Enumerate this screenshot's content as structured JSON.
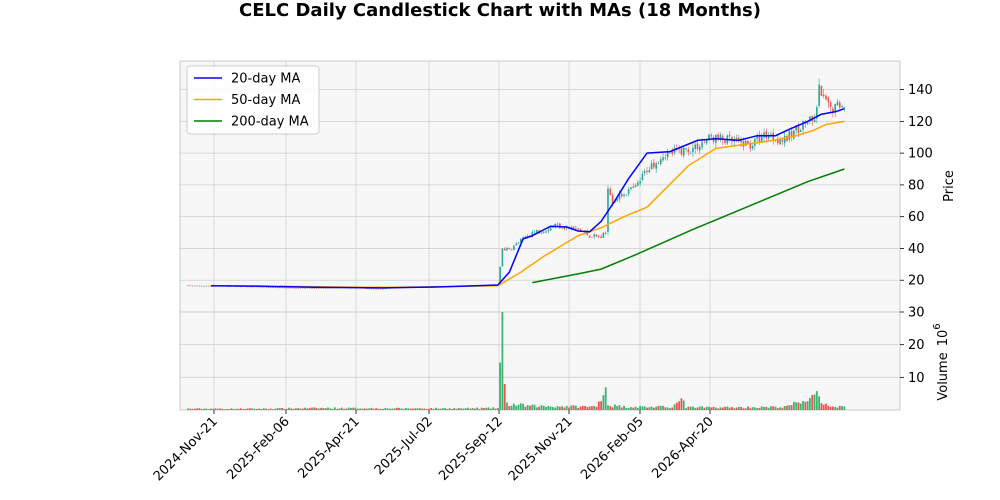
{
  "chart_data": {
    "type": "candlestick",
    "title": "CELC Daily Candlestick Chart with MAs (18 Months)",
    "price_axis": {
      "label": "Price",
      "ticks": [
        20,
        40,
        60,
        80,
        100,
        120,
        140
      ],
      "ylim": [
        0,
        158
      ]
    },
    "volume_axis": {
      "label": "Volume",
      "multiplier": "10",
      "exponent": "6",
      "ticks": [
        10,
        20,
        30
      ],
      "ylim": [
        0,
        30
      ]
    },
    "x_axis": {
      "ticks": [
        "2024-Nov-21",
        "2025-Feb-06",
        "2025-Apr-21",
        "2025-Jul-02",
        "2025-Sep-12",
        "2025-Nov-21",
        "2026-Feb-05",
        "2026-Apr-20"
      ]
    },
    "grid": true,
    "legend_position": "top-left",
    "legend": [
      "20-day MA",
      "50-day MA",
      "200-day MA"
    ],
    "colors": {
      "ma20": "#0000ff",
      "ma50": "#ffa500",
      "ma200": "#008000",
      "up": "#26a69a",
      "down": "#ef5350",
      "vol_up": "#3cb371",
      "vol_down": "#ef5350",
      "panel_bg": "#f7f7f7",
      "grid": "#d0d0d0"
    },
    "price_anchors": [
      [
        0,
        16.5
      ],
      [
        20,
        16.2
      ],
      [
        40,
        15.3
      ],
      [
        55,
        15.0
      ],
      [
        70,
        15.3
      ],
      [
        82,
        14.6
      ],
      [
        95,
        15.4
      ],
      [
        110,
        15.6
      ],
      [
        125,
        16.5
      ],
      [
        135,
        17.0
      ],
      [
        137,
        40.0
      ],
      [
        140,
        39.0
      ],
      [
        145,
        45.0
      ],
      [
        150,
        50.0
      ],
      [
        156,
        52.0
      ],
      [
        160,
        55.0
      ],
      [
        165,
        53.0
      ],
      [
        170,
        52.0
      ],
      [
        175,
        48.0
      ],
      [
        180,
        47.0
      ],
      [
        182,
        50.0
      ],
      [
        183,
        80.0
      ],
      [
        185,
        70.0
      ],
      [
        190,
        75.0
      ],
      [
        195,
        78.0
      ],
      [
        200,
        90.0
      ],
      [
        207,
        99.0
      ],
      [
        213,
        101.0
      ],
      [
        220,
        103.0
      ],
      [
        228,
        110.0
      ],
      [
        235,
        108.0
      ],
      [
        245,
        105.0
      ],
      [
        252,
        112.0
      ],
      [
        260,
        108.0
      ],
      [
        265,
        115.0
      ],
      [
        270,
        120.0
      ],
      [
        273,
        119.0
      ],
      [
        275,
        140.0
      ],
      [
        277,
        133.0
      ],
      [
        280,
        128.0
      ],
      [
        283,
        130.0
      ],
      [
        286,
        132.0
      ]
    ],
    "volume_anchors": [
      [
        0,
        0.4
      ],
      [
        30,
        0.4
      ],
      [
        60,
        0.6
      ],
      [
        90,
        0.5
      ],
      [
        120,
        0.5
      ],
      [
        135,
        0.6
      ],
      [
        137,
        27.5
      ],
      [
        138,
        6.0
      ],
      [
        139,
        1.8
      ],
      [
        150,
        1.2
      ],
      [
        178,
        1.0
      ],
      [
        182,
        7.5
      ],
      [
        183,
        1.5
      ],
      [
        190,
        1.0
      ],
      [
        210,
        0.9
      ],
      [
        216,
        3.0
      ],
      [
        217,
        0.8
      ],
      [
        240,
        0.8
      ],
      [
        260,
        0.9
      ],
      [
        275,
        4.5
      ],
      [
        276,
        1.5
      ],
      [
        286,
        1.0
      ]
    ],
    "ma20": [
      [
        10,
        16.5
      ],
      [
        30,
        16.3
      ],
      [
        55,
        15.6
      ],
      [
        85,
        15.2
      ],
      [
        110,
        15.8
      ],
      [
        135,
        17.0
      ],
      [
        140,
        25.0
      ],
      [
        146,
        46.0
      ],
      [
        150,
        48.0
      ],
      [
        158,
        54.0
      ],
      [
        165,
        53.5
      ],
      [
        170,
        51.0
      ],
      [
        175,
        50.5
      ],
      [
        180,
        57.0
      ],
      [
        186,
        70.0
      ],
      [
        192,
        84.0
      ],
      [
        200,
        100.0
      ],
      [
        210,
        101.0
      ],
      [
        222,
        108.0
      ],
      [
        230,
        109.0
      ],
      [
        240,
        108.0
      ],
      [
        248,
        111.0
      ],
      [
        256,
        111.0
      ],
      [
        262,
        115.0
      ],
      [
        270,
        120.0
      ],
      [
        276,
        124.5
      ],
      [
        282,
        126.0
      ],
      [
        286,
        128.0
      ]
    ],
    "ma50": [
      [
        40,
        16.2
      ],
      [
        60,
        15.8
      ],
      [
        80,
        15.5
      ],
      [
        105,
        15.8
      ],
      [
        135,
        16.5
      ],
      [
        145,
        25.0
      ],
      [
        155,
        35.0
      ],
      [
        170,
        48.0
      ],
      [
        180,
        53.0
      ],
      [
        190,
        60.0
      ],
      [
        200,
        66.0
      ],
      [
        218,
        92.0
      ],
      [
        230,
        103.0
      ],
      [
        245,
        106.0
      ],
      [
        255,
        108.0
      ],
      [
        265,
        111.0
      ],
      [
        272,
        114.0
      ],
      [
        278,
        118.0
      ],
      [
        286,
        120.0
      ]
    ],
    "ma200": [
      [
        150,
        18.5
      ],
      [
        170,
        24.0
      ],
      [
        180,
        27.0
      ],
      [
        195,
        36.0
      ],
      [
        220,
        52.0
      ],
      [
        250,
        70.0
      ],
      [
        270,
        82.0
      ],
      [
        286,
        90.0
      ]
    ]
  }
}
